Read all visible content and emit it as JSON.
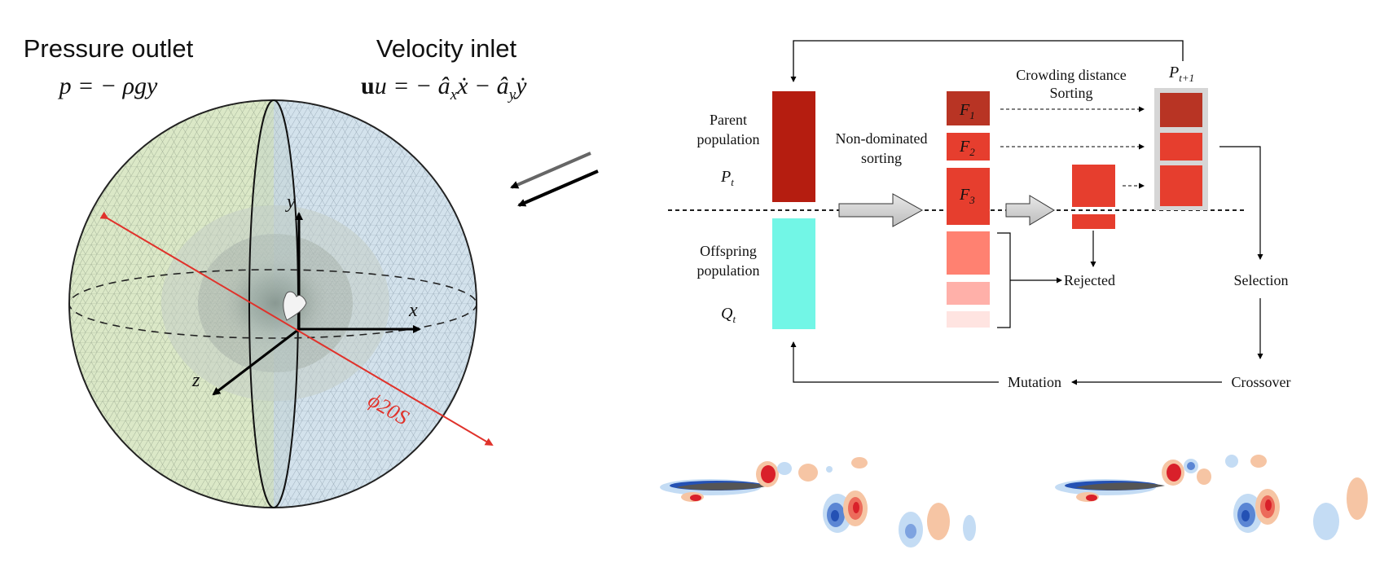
{
  "sphere_panel": {
    "left_label": "Pressure outlet",
    "left_formula": "p = − ρgy",
    "right_label": "Velocity inlet",
    "right_formula": "u = − â",
    "right_formula_x": "x",
    "right_formula_mid": "ẋ − â",
    "right_formula_y": "y",
    "right_formula_end": "ẏ",
    "axis_x": "x",
    "axis_y": "y",
    "axis_z": "z",
    "diameter_label": "ϕ20S",
    "colors": {
      "left_mesh": "#dbe8c7",
      "right_mesh": "#d3e2ec",
      "diameter": "#e0322b"
    }
  },
  "flowchart": {
    "parent_label_1": "Parent",
    "parent_label_2": "population",
    "parent_symbol": "P",
    "parent_sub": "t",
    "offspring_label_1": "Offspring",
    "offspring_label_2": "population",
    "offspring_symbol": "Q",
    "offspring_sub": "t",
    "nds_label_1": "Non-dominated",
    "nds_label_2": "sorting",
    "f_symbol": "F",
    "f1_sub": "1",
    "f2_sub": "2",
    "f3_sub": "3",
    "cd_label_1": "Crowding distance",
    "cd_label_2": "Sorting",
    "next_symbol": "P",
    "next_sub": "t+1",
    "rejected": "Rejected",
    "selection": "Selection",
    "crossover": "Crossover",
    "mutation": "Mutation",
    "colors": {
      "parent": "#b51d10",
      "offspring": "#72f6e6",
      "f1": "#b83424",
      "f2": "#e63e2e",
      "f3": "#e63e2e",
      "rejected_1": "#ff8171",
      "rejected_2": "#ffb0a9",
      "rejected_3": "#ffe4e1",
      "next_frame": "#d6d6d6"
    }
  },
  "wake_panel": {
    "colors": {
      "red": "#d9202a",
      "blue": "#2451b4",
      "light_red": "#f6c5a4",
      "light_blue": "#c4dcf4"
    }
  }
}
